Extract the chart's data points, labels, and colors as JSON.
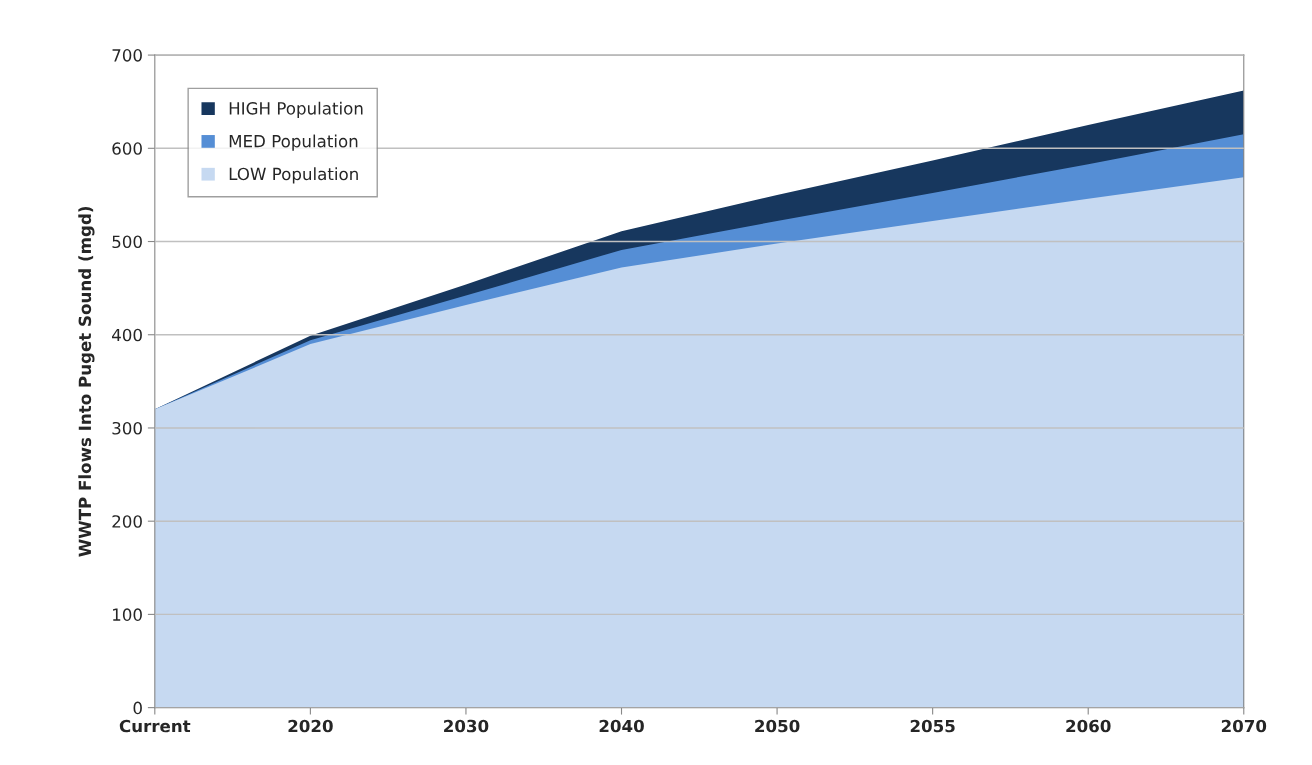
{
  "chart_data": {
    "type": "area",
    "ylabel": "WWTP Flows Into Puget Sound (mgd)",
    "categories": [
      "Current",
      "2020",
      "2030",
      "2040",
      "2050",
      "2055",
      "2060",
      "2070"
    ],
    "series": [
      {
        "name": "HIGH Population",
        "color": "#17375e",
        "values": [
          320,
          399,
          454,
          511,
          550,
          587,
          625,
          662
        ]
      },
      {
        "name": "MED Population",
        "color": "#558ed5",
        "values": [
          320,
          394,
          442,
          491,
          522,
          552,
          583,
          615
        ]
      },
      {
        "name": "LOW Population",
        "color": "#c6d9f1",
        "values": [
          320,
          390,
          432,
          472,
          498,
          522,
          546,
          569
        ]
      }
    ],
    "ylim": [
      0,
      700
    ],
    "yticks": [
      0,
      100,
      200,
      300,
      400,
      500,
      600,
      700
    ],
    "grid": "y",
    "legend": "top left"
  }
}
